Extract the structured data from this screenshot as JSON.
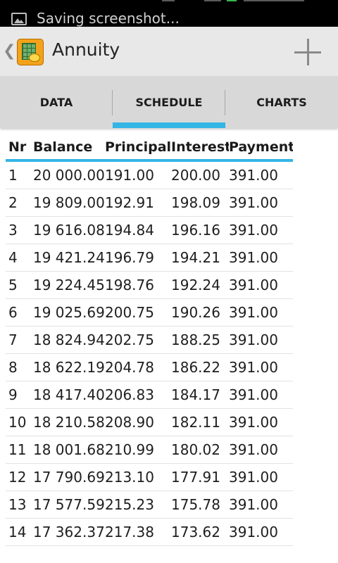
{
  "status_bar": {
    "text": "Saving screenshot..."
  },
  "action_bar": {
    "back_glyph": "❮",
    "title": "Annuity"
  },
  "tabs": [
    {
      "label": "DATA",
      "selected": false
    },
    {
      "label": "SCHEDULE",
      "selected": true
    },
    {
      "label": "CHARTS",
      "selected": false
    }
  ],
  "colors": {
    "accent": "#33b5e5",
    "battery": "#39b54a"
  },
  "schedule": {
    "headers": {
      "nr": "Nr",
      "balance": "Balance",
      "principal": "Principal",
      "interest": "Interest",
      "payment": "Payment"
    },
    "rows": [
      {
        "nr": "1",
        "balance": "20 000.00",
        "principal": "191.00",
        "interest": "200.00",
        "payment": "391.00"
      },
      {
        "nr": "2",
        "balance": "19 809.00",
        "principal": "192.91",
        "interest": "198.09",
        "payment": "391.00"
      },
      {
        "nr": "3",
        "balance": "19 616.08",
        "principal": "194.84",
        "interest": "196.16",
        "payment": "391.00"
      },
      {
        "nr": "4",
        "balance": "19 421.24",
        "principal": "196.79",
        "interest": "194.21",
        "payment": "391.00"
      },
      {
        "nr": "5",
        "balance": "19 224.45",
        "principal": "198.76",
        "interest": "192.24",
        "payment": "391.00"
      },
      {
        "nr": "6",
        "balance": "19 025.69",
        "principal": "200.75",
        "interest": "190.26",
        "payment": "391.00"
      },
      {
        "nr": "7",
        "balance": "18 824.94",
        "principal": "202.75",
        "interest": "188.25",
        "payment": "391.00"
      },
      {
        "nr": "8",
        "balance": "18 622.19",
        "principal": "204.78",
        "interest": "186.22",
        "payment": "391.00"
      },
      {
        "nr": "9",
        "balance": "18 417.40",
        "principal": "206.83",
        "interest": "184.17",
        "payment": "391.00"
      },
      {
        "nr": "10",
        "balance": "18 210.58",
        "principal": "208.90",
        "interest": "182.11",
        "payment": "391.00"
      },
      {
        "nr": "11",
        "balance": "18 001.68",
        "principal": "210.99",
        "interest": "180.02",
        "payment": "391.00"
      },
      {
        "nr": "12",
        "balance": "17 790.69",
        "principal": "213.10",
        "interest": "177.91",
        "payment": "391.00"
      },
      {
        "nr": "13",
        "balance": "17 577.59",
        "principal": "215.23",
        "interest": "175.78",
        "payment": "391.00"
      },
      {
        "nr": "14",
        "balance": "17 362.37",
        "principal": "217.38",
        "interest": "173.62",
        "payment": "391.00"
      }
    ]
  }
}
